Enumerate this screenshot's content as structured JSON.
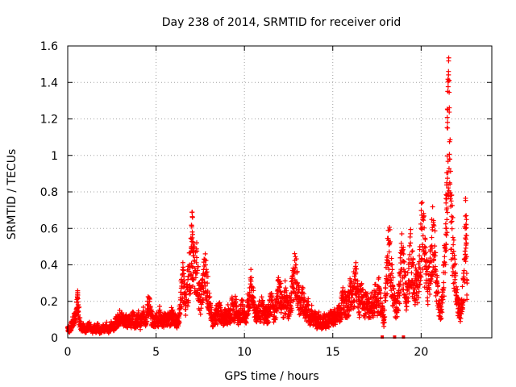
{
  "chart_data": {
    "type": "scatter",
    "title": "Day 238 of 2014, SRMTID for receiver orid",
    "xlabel": "GPS time / hours",
    "ylabel": "SRMTID / TECUs",
    "xlim": [
      0,
      24
    ],
    "ylim": [
      0,
      1.6
    ],
    "xticks": [
      0,
      5,
      10,
      15,
      20
    ],
    "xtick_labels": [
      "0",
      "5",
      "10",
      "15",
      "20"
    ],
    "yticks": [
      0,
      0.2,
      0.4,
      0.6,
      0.8,
      1.0,
      1.2,
      1.4,
      1.6
    ],
    "ytick_labels": [
      "0",
      "0.2",
      "0.4",
      "0.6",
      "0.8",
      "1",
      "1.2",
      "1.4",
      "1.6"
    ],
    "grid": true,
    "marker": "+",
    "marker_color": "#ff0000",
    "series": [
      {
        "name": "SRMTID",
        "points": [
          [
            0.0,
            0.06
          ],
          [
            0.1,
            0.05
          ],
          [
            0.2,
            0.07
          ],
          [
            0.3,
            0.1
          ],
          [
            0.4,
            0.12
          ],
          [
            0.5,
            0.16
          ],
          [
            0.55,
            0.22
          ],
          [
            0.6,
            0.18
          ],
          [
            0.7,
            0.08
          ],
          [
            0.8,
            0.06
          ],
          [
            0.9,
            0.07
          ],
          [
            1.0,
            0.05
          ],
          [
            1.1,
            0.06
          ],
          [
            1.2,
            0.08
          ],
          [
            1.3,
            0.05
          ],
          [
            1.4,
            0.04
          ],
          [
            1.5,
            0.06
          ],
          [
            1.6,
            0.05
          ],
          [
            1.7,
            0.07
          ],
          [
            1.8,
            0.04
          ],
          [
            1.9,
            0.05
          ],
          [
            2.0,
            0.06
          ],
          [
            2.1,
            0.05
          ],
          [
            2.2,
            0.07
          ],
          [
            2.3,
            0.04
          ],
          [
            2.4,
            0.06
          ],
          [
            2.5,
            0.08
          ],
          [
            2.6,
            0.07
          ],
          [
            2.7,
            0.09
          ],
          [
            2.8,
            0.1
          ],
          [
            2.9,
            0.12
          ],
          [
            3.0,
            0.13
          ],
          [
            3.1,
            0.11
          ],
          [
            3.2,
            0.1
          ],
          [
            3.3,
            0.12
          ],
          [
            3.4,
            0.09
          ],
          [
            3.5,
            0.11
          ],
          [
            3.6,
            0.1
          ],
          [
            3.7,
            0.13
          ],
          [
            3.8,
            0.09
          ],
          [
            3.9,
            0.1
          ],
          [
            4.0,
            0.12
          ],
          [
            4.1,
            0.08
          ],
          [
            4.2,
            0.11
          ],
          [
            4.3,
            0.14
          ],
          [
            4.4,
            0.1
          ],
          [
            4.5,
            0.16
          ],
          [
            4.6,
            0.22
          ],
          [
            4.7,
            0.13
          ],
          [
            4.8,
            0.11
          ],
          [
            4.9,
            0.09
          ],
          [
            5.0,
            0.12
          ],
          [
            5.1,
            0.1
          ],
          [
            5.2,
            0.14
          ],
          [
            5.3,
            0.11
          ],
          [
            5.4,
            0.09
          ],
          [
            5.5,
            0.13
          ],
          [
            5.6,
            0.1
          ],
          [
            5.7,
            0.12
          ],
          [
            5.8,
            0.11
          ],
          [
            5.9,
            0.15
          ],
          [
            6.0,
            0.13
          ],
          [
            6.1,
            0.1
          ],
          [
            6.2,
            0.09
          ],
          [
            6.3,
            0.12
          ],
          [
            6.4,
            0.25
          ],
          [
            6.5,
            0.35
          ],
          [
            6.6,
            0.28
          ],
          [
            6.7,
            0.2
          ],
          [
            6.8,
            0.32
          ],
          [
            6.9,
            0.4
          ],
          [
            7.0,
            0.5
          ],
          [
            7.05,
            0.58
          ],
          [
            7.1,
            0.45
          ],
          [
            7.2,
            0.38
          ],
          [
            7.3,
            0.44
          ],
          [
            7.4,
            0.3
          ],
          [
            7.5,
            0.22
          ],
          [
            7.6,
            0.28
          ],
          [
            7.7,
            0.35
          ],
          [
            7.8,
            0.4
          ],
          [
            7.9,
            0.3
          ],
          [
            8.0,
            0.22
          ],
          [
            8.1,
            0.14
          ],
          [
            8.2,
            0.1
          ],
          [
            8.3,
            0.12
          ],
          [
            8.4,
            0.15
          ],
          [
            8.5,
            0.13
          ],
          [
            8.6,
            0.18
          ],
          [
            8.7,
            0.12
          ],
          [
            8.8,
            0.1
          ],
          [
            8.9,
            0.14
          ],
          [
            9.0,
            0.12
          ],
          [
            9.1,
            0.16
          ],
          [
            9.2,
            0.13
          ],
          [
            9.3,
            0.18
          ],
          [
            9.4,
            0.15
          ],
          [
            9.5,
            0.2
          ],
          [
            9.6,
            0.14
          ],
          [
            9.7,
            0.12
          ],
          [
            9.8,
            0.16
          ],
          [
            9.9,
            0.18
          ],
          [
            10.0,
            0.14
          ],
          [
            10.1,
            0.12
          ],
          [
            10.2,
            0.2
          ],
          [
            10.3,
            0.25
          ],
          [
            10.4,
            0.33
          ],
          [
            10.5,
            0.22
          ],
          [
            10.6,
            0.16
          ],
          [
            10.7,
            0.13
          ],
          [
            10.8,
            0.18
          ],
          [
            10.9,
            0.15
          ],
          [
            11.0,
            0.2
          ],
          [
            11.1,
            0.14
          ],
          [
            11.2,
            0.17
          ],
          [
            11.3,
            0.13
          ],
          [
            11.4,
            0.16
          ],
          [
            11.5,
            0.22
          ],
          [
            11.6,
            0.18
          ],
          [
            11.7,
            0.14
          ],
          [
            11.8,
            0.2
          ],
          [
            11.9,
            0.26
          ],
          [
            12.0,
            0.31
          ],
          [
            12.1,
            0.22
          ],
          [
            12.2,
            0.18
          ],
          [
            12.3,
            0.25
          ],
          [
            12.4,
            0.2
          ],
          [
            12.5,
            0.16
          ],
          [
            12.6,
            0.22
          ],
          [
            12.7,
            0.28
          ],
          [
            12.8,
            0.35
          ],
          [
            12.9,
            0.4
          ],
          [
            13.0,
            0.3
          ],
          [
            13.1,
            0.22
          ],
          [
            13.2,
            0.18
          ],
          [
            13.3,
            0.25
          ],
          [
            13.4,
            0.2
          ],
          [
            13.5,
            0.15
          ],
          [
            13.6,
            0.18
          ],
          [
            13.7,
            0.12
          ],
          [
            13.8,
            0.15
          ],
          [
            13.9,
            0.1
          ],
          [
            14.0,
            0.13
          ],
          [
            14.1,
            0.09
          ],
          [
            14.2,
            0.12
          ],
          [
            14.3,
            0.1
          ],
          [
            14.4,
            0.08
          ],
          [
            14.5,
            0.11
          ],
          [
            14.6,
            0.09
          ],
          [
            14.7,
            0.12
          ],
          [
            14.8,
            0.1
          ],
          [
            14.9,
            0.14
          ],
          [
            15.0,
            0.11
          ],
          [
            15.1,
            0.13
          ],
          [
            15.2,
            0.1
          ],
          [
            15.3,
            0.16
          ],
          [
            15.4,
            0.14
          ],
          [
            15.5,
            0.19
          ],
          [
            15.6,
            0.25
          ],
          [
            15.7,
            0.2
          ],
          [
            15.8,
            0.18
          ],
          [
            15.9,
            0.22
          ],
          [
            16.0,
            0.28
          ],
          [
            16.1,
            0.24
          ],
          [
            16.2,
            0.3
          ],
          [
            16.3,
            0.36
          ],
          [
            16.4,
            0.26
          ],
          [
            16.5,
            0.2
          ],
          [
            16.6,
            0.25
          ],
          [
            16.7,
            0.22
          ],
          [
            16.8,
            0.18
          ],
          [
            16.9,
            0.23
          ],
          [
            17.0,
            0.2
          ],
          [
            17.1,
            0.15
          ],
          [
            17.2,
            0.22
          ],
          [
            17.3,
            0.18
          ],
          [
            17.4,
            0.25
          ],
          [
            17.5,
            0.2
          ],
          [
            17.6,
            0.28
          ],
          [
            17.7,
            0.22
          ],
          [
            17.8,
            0.15
          ],
          [
            17.9,
            0.1
          ],
          [
            18.0,
            0.3
          ],
          [
            18.1,
            0.45
          ],
          [
            18.2,
            0.52
          ],
          [
            18.3,
            0.4
          ],
          [
            18.4,
            0.28
          ],
          [
            18.5,
            0.2
          ],
          [
            18.6,
            0.15
          ],
          [
            18.7,
            0.25
          ],
          [
            18.8,
            0.35
          ],
          [
            18.9,
            0.48
          ],
          [
            19.0,
            0.42
          ],
          [
            19.1,
            0.3
          ],
          [
            19.2,
            0.22
          ],
          [
            19.3,
            0.38
          ],
          [
            19.4,
            0.52
          ],
          [
            19.5,
            0.4
          ],
          [
            19.6,
            0.3
          ],
          [
            19.7,
            0.35
          ],
          [
            19.8,
            0.28
          ],
          [
            19.9,
            0.45
          ],
          [
            20.0,
            0.6
          ],
          [
            20.1,
            0.66
          ],
          [
            20.2,
            0.5
          ],
          [
            20.3,
            0.38
          ],
          [
            20.4,
            0.3
          ],
          [
            20.5,
            0.42
          ],
          [
            20.6,
            0.55
          ],
          [
            20.7,
            0.62
          ],
          [
            20.8,
            0.45
          ],
          [
            20.9,
            0.3
          ],
          [
            21.0,
            0.2
          ],
          [
            21.1,
            0.15
          ],
          [
            21.2,
            0.22
          ],
          [
            21.3,
            0.4
          ],
          [
            21.4,
            0.6
          ],
          [
            21.45,
            0.85
          ],
          [
            21.5,
            1.15
          ],
          [
            21.55,
            1.46
          ],
          [
            21.6,
            0.98
          ],
          [
            21.7,
            0.75
          ],
          [
            21.8,
            0.55
          ],
          [
            21.9,
            0.4
          ],
          [
            22.0,
            0.25
          ],
          [
            22.1,
            0.18
          ],
          [
            22.2,
            0.15
          ],
          [
            22.3,
            0.2
          ],
          [
            22.4,
            0.32
          ],
          [
            22.5,
            0.6
          ],
          [
            22.55,
            0.67
          ],
          [
            22.6,
            0.3
          ]
        ],
        "zero_points": [
          17.8,
          18.5,
          19.0
        ]
      }
    ]
  }
}
